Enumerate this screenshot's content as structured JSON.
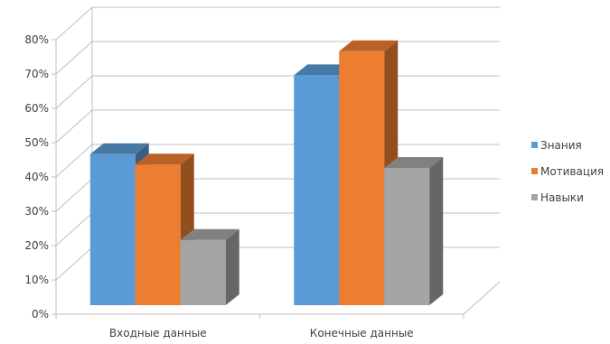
{
  "chart_data": {
    "type": "bar",
    "title": "",
    "xlabel": "",
    "ylabel": "",
    "categories": [
      "Входные данные",
      "Конечные данные"
    ],
    "series": [
      {
        "name": "Знания",
        "values": [
          44,
          67
        ],
        "color": "#5b9bd5"
      },
      {
        "name": "Мотивация",
        "values": [
          41,
          74
        ],
        "color": "#ed7d31"
      },
      {
        "name": "Навыки",
        "values": [
          19,
          40
        ],
        "color": "#a5a5a5"
      }
    ],
    "ylim": [
      0,
      80
    ],
    "yticks": [
      "0%",
      "10%",
      "20%",
      "30%",
      "40%",
      "50%",
      "60%",
      "70%",
      "80%"
    ],
    "grid": true,
    "legend_position": "right",
    "style": "3d-clustered-column"
  }
}
